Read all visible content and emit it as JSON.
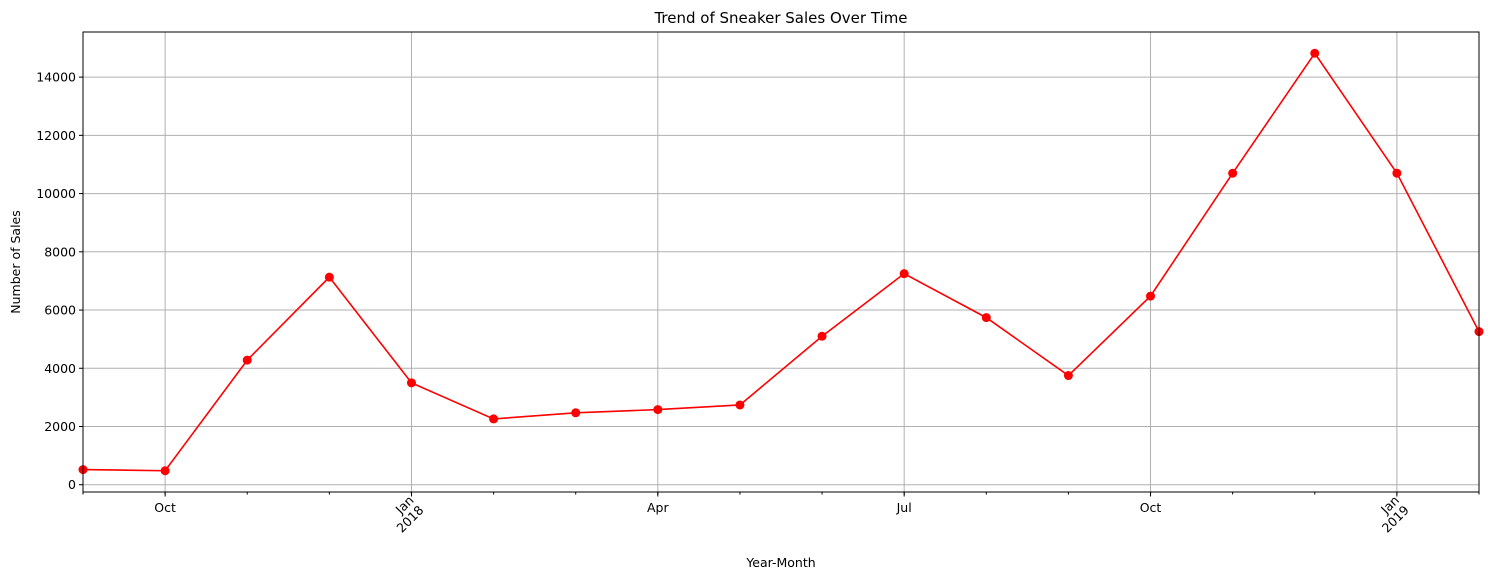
{
  "chart_data": {
    "type": "line",
    "title": "Trend of Sneaker Sales Over Time",
    "xlabel": "Year-Month",
    "ylabel": "Number of Sales",
    "grid": true,
    "x": [
      "2017-09",
      "2017-10",
      "2017-11",
      "2017-12",
      "2018-01",
      "2018-02",
      "2018-03",
      "2018-04",
      "2018-05",
      "2018-06",
      "2018-07",
      "2018-08",
      "2018-09",
      "2018-10",
      "2018-11",
      "2018-12",
      "2019-01",
      "2019-02"
    ],
    "series": [
      {
        "color": "#ff0000",
        "values": [
          520,
          480,
          4280,
          7130,
          3500,
          2260,
          2470,
          2580,
          2740,
          5100,
          7250,
          5740,
          3750,
          6480,
          10700,
          14820,
          10700,
          5260
        ]
      }
    ],
    "xlim": [
      "2017-09",
      "2019-02"
    ],
    "ylim": [
      -250,
      15550
    ],
    "yticks": [
      0,
      2000,
      4000,
      6000,
      8000,
      10000,
      12000,
      14000
    ],
    "ytick_labels": [
      "0",
      "2000",
      "4000",
      "6000",
      "8000",
      "10000",
      "12000",
      "14000"
    ],
    "xticks_major": [
      {
        "x": "2017-10",
        "label": "Oct",
        "sublabel": ""
      },
      {
        "x": "2018-01",
        "label": "Jan",
        "sublabel": "2018"
      },
      {
        "x": "2018-04",
        "label": "Apr",
        "sublabel": ""
      },
      {
        "x": "2018-07",
        "label": "Jul",
        "sublabel": ""
      },
      {
        "x": "2018-10",
        "label": "Oct",
        "sublabel": ""
      },
      {
        "x": "2019-01",
        "label": "Jan",
        "sublabel": "2019"
      }
    ]
  }
}
